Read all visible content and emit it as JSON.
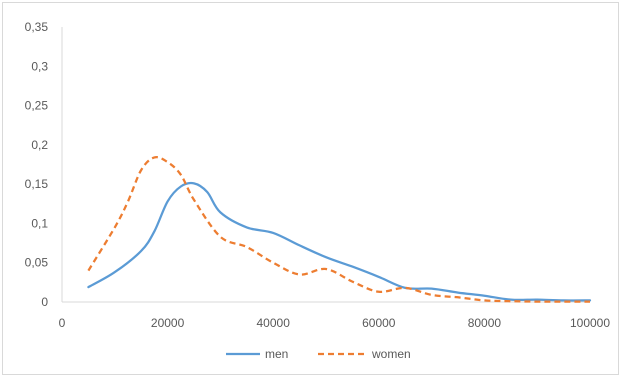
{
  "chart_data": {
    "type": "line",
    "title": "",
    "xlabel": "",
    "ylabel": "",
    "xlim": [
      0,
      100000
    ],
    "ylim": [
      0,
      0.35
    ],
    "x_ticks": [
      0,
      20000,
      40000,
      60000,
      80000,
      100000
    ],
    "x_tick_labels": [
      "0",
      "20000",
      "40000",
      "60000",
      "80000",
      "100000"
    ],
    "y_ticks": [
      0,
      0.05,
      0.1,
      0.15,
      0.2,
      0.25,
      0.3,
      0.35
    ],
    "y_tick_labels": [
      "0",
      "0,05",
      "0,1",
      "0,15",
      "0,2",
      "0,25",
      "0,3",
      "0,35"
    ],
    "grid": false,
    "legend_position": "bottom",
    "series": [
      {
        "name": "men",
        "color": "#5b9bd5",
        "dash": "solid",
        "points": [
          [
            5000,
            0.019
          ],
          [
            10000,
            0.038
          ],
          [
            15000,
            0.065
          ],
          [
            17500,
            0.09
          ],
          [
            20000,
            0.128
          ],
          [
            22500,
            0.147
          ],
          [
            25000,
            0.151
          ],
          [
            27500,
            0.14
          ],
          [
            30000,
            0.114
          ],
          [
            35000,
            0.095
          ],
          [
            40000,
            0.088
          ],
          [
            45000,
            0.072
          ],
          [
            50000,
            0.057
          ],
          [
            55000,
            0.045
          ],
          [
            60000,
            0.032
          ],
          [
            65000,
            0.018
          ],
          [
            70000,
            0.017
          ],
          [
            75000,
            0.012
          ],
          [
            80000,
            0.008
          ],
          [
            85000,
            0.003
          ],
          [
            90000,
            0.003
          ],
          [
            95000,
            0.002
          ],
          [
            100000,
            0.002
          ]
        ]
      },
      {
        "name": "women",
        "color": "#ed7d31",
        "dash": "dashed",
        "points": [
          [
            5000,
            0.04
          ],
          [
            10000,
            0.095
          ],
          [
            12500,
            0.128
          ],
          [
            15000,
            0.168
          ],
          [
            17500,
            0.184
          ],
          [
            20000,
            0.178
          ],
          [
            22500,
            0.162
          ],
          [
            25000,
            0.13
          ],
          [
            30000,
            0.083
          ],
          [
            35000,
            0.07
          ],
          [
            40000,
            0.05
          ],
          [
            45000,
            0.035
          ],
          [
            50000,
            0.042
          ],
          [
            55000,
            0.026
          ],
          [
            60000,
            0.013
          ],
          [
            65000,
            0.018
          ],
          [
            70000,
            0.009
          ],
          [
            75000,
            0.006
          ],
          [
            80000,
            0.002
          ],
          [
            85000,
            0.001
          ],
          [
            90000,
            0.0005
          ],
          [
            95000,
            0.0005
          ],
          [
            100000,
            0.0005
          ]
        ]
      }
    ]
  }
}
